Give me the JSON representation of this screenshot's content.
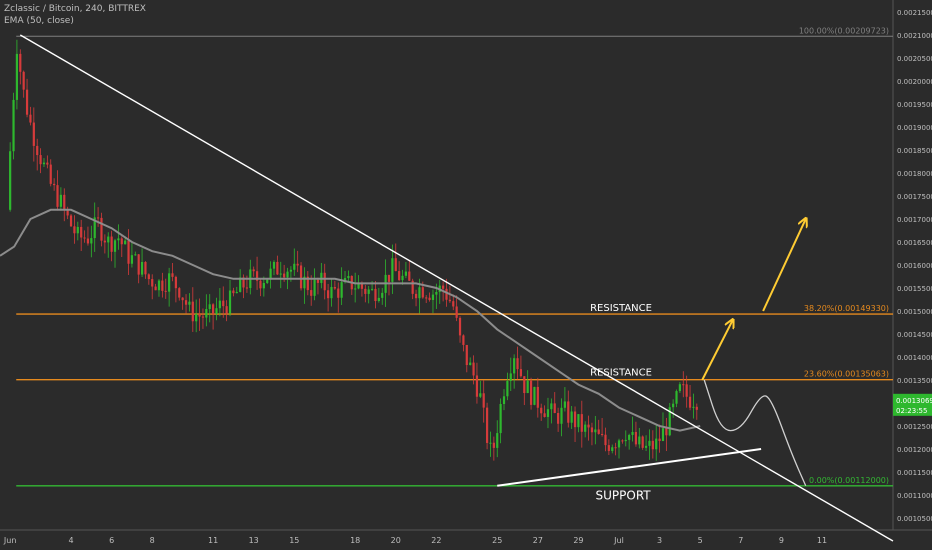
{
  "header": {
    "symbol_line": "Zclassic / Bitcoin, 240, BITTREX",
    "indicator_line": "EMA (50, close)"
  },
  "chart_data": {
    "type": "candlestick",
    "symbol": "Zclassic / Bitcoin",
    "interval": "240",
    "exchange": "BITTREX",
    "indicator": "EMA (50, close)",
    "ylim": [
      0.00105,
      0.00215
    ],
    "y_ticks": [
      "0.00215000",
      "0.00210000",
      "0.00205000",
      "0.00200000",
      "0.00195000",
      "0.00190000",
      "0.00185000",
      "0.00180000",
      "0.00175000",
      "0.00170000",
      "0.00165000",
      "0.00160000",
      "0.00155000",
      "0.00150000",
      "0.00145000",
      "0.00140000",
      "0.00135000",
      "0.00130000",
      "0.00125000",
      "0.00120000",
      "0.00115000",
      "0.00110000",
      "0.00105000"
    ],
    "x_ticks": [
      {
        "label": "Jun",
        "day": 0
      },
      {
        "label": "4",
        "day": 3
      },
      {
        "label": "6",
        "day": 5
      },
      {
        "label": "8",
        "day": 7
      },
      {
        "label": "11",
        "day": 10
      },
      {
        "label": "13",
        "day": 12
      },
      {
        "label": "15",
        "day": 14
      },
      {
        "label": "18",
        "day": 17
      },
      {
        "label": "20",
        "day": 19
      },
      {
        "label": "22",
        "day": 21
      },
      {
        "label": "25",
        "day": 24
      },
      {
        "label": "27",
        "day": 26
      },
      {
        "label": "29",
        "day": 28
      },
      {
        "label": "Jul",
        "day": 30
      },
      {
        "label": "3",
        "day": 32
      },
      {
        "label": "5",
        "day": 34
      },
      {
        "label": "7",
        "day": 36
      },
      {
        "label": "9",
        "day": 38
      },
      {
        "label": "11",
        "day": 40
      }
    ],
    "x_range_days": [
      -0.5,
      43.5
    ],
    "price_path": [
      [
        0,
        0.00172
      ],
      [
        0.3,
        0.00195
      ],
      [
        0.5,
        0.00208
      ],
      [
        0.8,
        0.00198
      ],
      [
        1.2,
        0.0019
      ],
      [
        1.7,
        0.00183
      ],
      [
        2.2,
        0.00177
      ],
      [
        2.6,
        0.00174
      ],
      [
        3.0,
        0.0017
      ],
      [
        3.5,
        0.00166
      ],
      [
        4.0,
        0.00166
      ],
      [
        4.5,
        0.00169
      ],
      [
        5.0,
        0.00165
      ],
      [
        5.5,
        0.00166
      ],
      [
        6.0,
        0.00162
      ],
      [
        6.5,
        0.0016
      ],
      [
        7.0,
        0.00157
      ],
      [
        7.5,
        0.00156
      ],
      [
        8.0,
        0.00157
      ],
      [
        8.5,
        0.00155
      ],
      [
        9.0,
        0.0015
      ],
      [
        9.5,
        0.00149
      ],
      [
        10.0,
        0.00149
      ],
      [
        10.5,
        0.00151
      ],
      [
        11.0,
        0.00152
      ],
      [
        11.5,
        0.00155
      ],
      [
        12.0,
        0.00157
      ],
      [
        12.5,
        0.00157
      ],
      [
        13.0,
        0.00158
      ],
      [
        13.5,
        0.0016
      ],
      [
        14.0,
        0.00159
      ],
      [
        14.5,
        0.00157
      ],
      [
        15.0,
        0.00155
      ],
      [
        15.5,
        0.00156
      ],
      [
        16.0,
        0.00154
      ],
      [
        16.5,
        0.00155
      ],
      [
        17.0,
        0.00156
      ],
      [
        17.5,
        0.00155
      ],
      [
        18.0,
        0.00154
      ],
      [
        18.5,
        0.00156
      ],
      [
        19.0,
        0.00159
      ],
      [
        19.5,
        0.00157
      ],
      [
        20.0,
        0.00155
      ],
      [
        20.5,
        0.00155
      ],
      [
        21.0,
        0.00154
      ],
      [
        21.5,
        0.00155
      ],
      [
        22.0,
        0.00151
      ],
      [
        22.3,
        0.00144
      ],
      [
        22.6,
        0.0014
      ],
      [
        23.0,
        0.00136
      ],
      [
        23.3,
        0.00132
      ],
      [
        23.6,
        0.00124
      ],
      [
        23.9,
        0.00118
      ],
      [
        24.2,
        0.00126
      ],
      [
        24.6,
        0.00136
      ],
      [
        25.0,
        0.00141
      ],
      [
        25.5,
        0.00134
      ],
      [
        26.0,
        0.00131
      ],
      [
        26.5,
        0.00129
      ],
      [
        27.0,
        0.00127
      ],
      [
        27.5,
        0.00128
      ],
      [
        28.0,
        0.00126
      ],
      [
        28.5,
        0.00124
      ],
      [
        29.0,
        0.00123
      ],
      [
        29.5,
        0.00121
      ],
      [
        30.0,
        0.00122
      ],
      [
        30.5,
        0.00124
      ],
      [
        31.0,
        0.00121
      ],
      [
        31.5,
        0.0012
      ],
      [
        32.0,
        0.00121
      ],
      [
        32.4,
        0.00124
      ],
      [
        32.8,
        0.00128
      ],
      [
        33.2,
        0.00133
      ],
      [
        33.6,
        0.00131
      ],
      [
        33.9,
        0.00131
      ]
    ],
    "ema_50": [
      [
        -0.5,
        0.00162
      ],
      [
        0.2,
        0.00164
      ],
      [
        1.0,
        0.0017
      ],
      [
        2.0,
        0.00172
      ],
      [
        3.0,
        0.00172
      ],
      [
        4.0,
        0.0017
      ],
      [
        5.0,
        0.00168
      ],
      [
        6.0,
        0.00165
      ],
      [
        7.0,
        0.00163
      ],
      [
        8.0,
        0.00162
      ],
      [
        9.0,
        0.0016
      ],
      [
        10.0,
        0.00158
      ],
      [
        11.0,
        0.00157
      ],
      [
        12.0,
        0.00157
      ],
      [
        13.0,
        0.00157
      ],
      [
        14.0,
        0.00157
      ],
      [
        15.0,
        0.00157
      ],
      [
        16.0,
        0.00157
      ],
      [
        17.0,
        0.00156
      ],
      [
        18.0,
        0.00156
      ],
      [
        19.0,
        0.00156
      ],
      [
        20.0,
        0.00156
      ],
      [
        21.0,
        0.00155
      ],
      [
        22.0,
        0.00153
      ],
      [
        23.0,
        0.0015
      ],
      [
        24.0,
        0.00146
      ],
      [
        25.0,
        0.00143
      ],
      [
        26.0,
        0.0014
      ],
      [
        27.0,
        0.00137
      ],
      [
        28.0,
        0.00134
      ],
      [
        29.0,
        0.00132
      ],
      [
        30.0,
        0.00129
      ],
      [
        31.0,
        0.00127
      ],
      [
        32.0,
        0.00125
      ],
      [
        33.0,
        0.00124
      ],
      [
        34.0,
        0.00125
      ]
    ],
    "trendline_descending": {
      "from": [
        0.5,
        0.0021
      ],
      "to": [
        43.5,
        0.001
      ]
    },
    "trendline_ascending": {
      "from": [
        24.0,
        0.00112
      ],
      "to": [
        37.0,
        0.0012
      ]
    },
    "projection_path": [
      [
        34.2,
        0.00135
      ],
      [
        35.0,
        0.00124
      ],
      [
        36.0,
        0.00124
      ],
      [
        37.0,
        0.00132
      ],
      [
        37.5,
        0.00131
      ],
      [
        38.5,
        0.00119
      ],
      [
        39.2,
        0.00112
      ]
    ],
    "fib_levels": [
      {
        "level": "100.00%",
        "value": 0.00209723,
        "label": "100.00%(0.00209723)",
        "color": "#808080"
      },
      {
        "level": "38.20%",
        "value": 0.0014933,
        "label": "38.20%(0.00149330)",
        "color": "#e68a1e"
      },
      {
        "level": "23.60%",
        "value": 0.00135063,
        "label": "23.60%(0.00135063)",
        "color": "#e68a1e"
      },
      {
        "level": "0.00%",
        "value": 0.00112,
        "label": "0.00%(0.00112000)",
        "color": "#33b833"
      }
    ],
    "annotations": [
      {
        "name": "resistance-upper-label",
        "text": "RESISTANCE",
        "day": 30.1,
        "y": 0.0015
      },
      {
        "name": "resistance-lower-label",
        "text": "RESISTANCE",
        "day": 30.1,
        "y": 0.00136
      },
      {
        "name": "support-label",
        "text": "SUPPORT",
        "day": 30.2,
        "y": 0.00109
      }
    ],
    "projection_arrows": [
      {
        "from": [
          34.1,
          0.00135
        ],
        "to": [
          35.6,
          0.00148
        ]
      },
      {
        "from": [
          37.1,
          0.0015
        ],
        "to": [
          39.2,
          0.0017
        ]
      }
    ],
    "current_price": {
      "value": "0.00130693",
      "countdown": "02:23:55",
      "price": 0.00130693
    },
    "colors": {
      "background": "#2b2b2b",
      "up_candle": "#2eb82e",
      "down_candle": "#d63b3b",
      "ema": "#8c8c8c",
      "trendline": "#ffffff",
      "fib_orange": "#e68a1e",
      "support_green": "#33b833",
      "arrow": "#ffcc33",
      "axis_text": "#bfbfbf"
    }
  }
}
